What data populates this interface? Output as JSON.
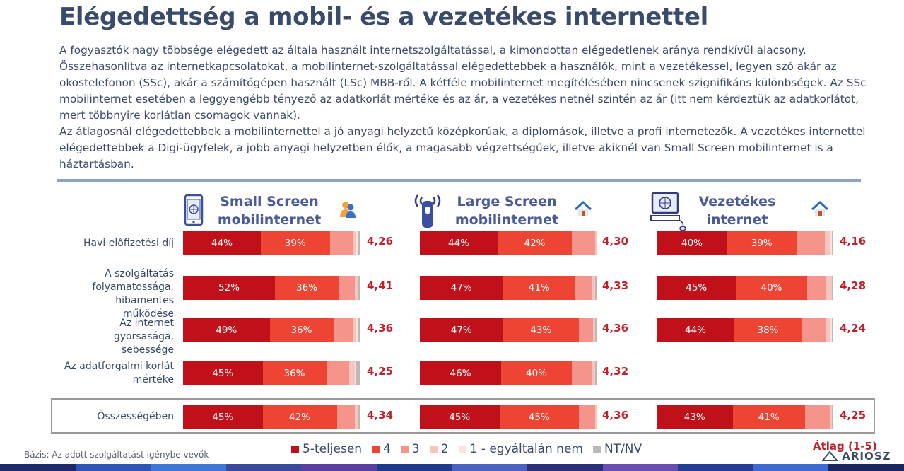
{
  "title": "Elégedettség a mobil- és a vezetékes internettel",
  "intro": [
    "A fogyasztók nagy többsége elégedett az általa használt internetszolgáltatással, a kimondottan elégedetlenek aránya rendkívül alacsony. Összehasonlítva az internetkapcsolatokat, a mobilinternet-szolgáltatással elégedettebbek a használók, mint a vezetékessel, legyen szó akár az okostelefonon (SSc), akár a számítógépen használt (LSc) MBB-ről. A kétféle mobilinternet megítélésében nincsenek szignifikáns különbségek. Az SSc mobilinternet esetében a leggyengébb tényező az adatkorlát mértéke és az ár, a vezetékes netnél szintén az ár (itt nem kérdeztük az adatkorlátot, mert többnyire korlátlan csomagok vannak).",
    "Az átlagosnál elégedettebbek a mobilinternettel a jó anyagi helyzetű középkorúak, a diplomások, illetve a profi internetezők. A vezetékes internettel elégedettebbek a Digi-ügyfelek, a jobb anyagi helyzetben élők, a magasabb végzettségűek, illetve akiknél van Small Screen mobilinternet is a háztartásban."
  ],
  "columns": [
    {
      "title_line1": "Small Screen",
      "title_line2": "mobilinternet",
      "icon": "smartphone-icon",
      "badge": "users-icon"
    },
    {
      "title_line1": "Large Screen",
      "title_line2": "mobilinternet",
      "icon": "usb-modem-icon",
      "badge": "house-icon"
    },
    {
      "title_line1": "Vezetékes",
      "title_line2": "internet",
      "icon": "desktop-computer-icon",
      "badge": "house-icon"
    }
  ],
  "row_labels": [
    "Havi előfizetési díj",
    "A szolgáltatás folyamatossága, hibamentes működése",
    "Az internet gyorsasága, sebessége",
    "Az adatforgalmi korlát mértéke",
    "Összességében"
  ],
  "colors": {
    "cat5": "#c0111a",
    "cat4": "#ee4433",
    "cat3": "#f4948a",
    "cat2": "#f8c4be",
    "cat1": "#fde3e0",
    "ntnv": "#b9b9b9",
    "accent": "#c0202a"
  },
  "chart_data": {
    "type": "bar",
    "orientation": "horizontal-stacked-100",
    "categories_order": [
      "5-teljesen",
      "4",
      "3",
      "2",
      "1 - egyáltalán nem",
      "NT/NV"
    ],
    "panels": [
      {
        "name": "Small Screen mobilinternet",
        "rows": [
          {
            "label": "Havi előfizetési díj",
            "values": [
              44,
              39,
              13,
              2,
              1,
              1
            ],
            "avg": "4,26",
            "labels": [
              "44%",
              "39%"
            ]
          },
          {
            "label": "A szolgáltatás folyamatossága, hibamentes működése",
            "values": [
              52,
              36,
              9,
              2,
              0,
              1
            ],
            "avg": "4,41",
            "labels": [
              "52%",
              "36%"
            ]
          },
          {
            "label": "Az internet gyorsasága, sebessége",
            "values": [
              49,
              36,
              11,
              2,
              1,
              1
            ],
            "avg": "4,36",
            "labels": [
              "49%",
              "36%"
            ]
          },
          {
            "label": "Az adatforgalmi korlát mértéke",
            "values": [
              45,
              36,
              13,
              3,
              1,
              2
            ],
            "avg": "4,25",
            "labels": [
              "45%",
              "36%"
            ]
          },
          {
            "label": "Összességében",
            "values": [
              45,
              42,
              10,
              2,
              0,
              1
            ],
            "avg": "4,34",
            "labels": [
              "45%",
              "42%"
            ]
          }
        ]
      },
      {
        "name": "Large Screen mobilinternet",
        "rows": [
          {
            "label": "Havi előfizetési díj",
            "values": [
              44,
              42,
              13,
              1,
              0,
              0
            ],
            "avg": "4,30",
            "labels": [
              "44%",
              "42%"
            ]
          },
          {
            "label": "A szolgáltatás folyamatossága, hibamentes működése",
            "values": [
              47,
              41,
              9,
              2,
              0,
              1
            ],
            "avg": "4,33",
            "labels": [
              "47%",
              "41%"
            ]
          },
          {
            "label": "Az internet gyorsasága, sebessége",
            "values": [
              47,
              43,
              8,
              1,
              0,
              1
            ],
            "avg": "4,36",
            "labels": [
              "47%",
              "43%"
            ]
          },
          {
            "label": "Az adatforgalmi korlát mértéke",
            "values": [
              46,
              40,
              11,
              2,
              0,
              1
            ],
            "avg": "4,32",
            "labels": [
              "46%",
              "40%"
            ]
          },
          {
            "label": "Összességében",
            "values": [
              45,
              45,
              9,
              1,
              0,
              0
            ],
            "avg": "4,36",
            "labels": [
              "45%",
              "45%"
            ]
          }
        ]
      },
      {
        "name": "Vezetékes internet",
        "rows": [
          {
            "label": "Havi előfizetési díj",
            "values": [
              40,
              39,
              16,
              3,
              1,
              1
            ],
            "avg": "4,16",
            "labels": [
              "40%",
              "39%"
            ]
          },
          {
            "label": "A szolgáltatás folyamatossága, hibamentes működése",
            "values": [
              45,
              40,
              11,
              3,
              0,
              1
            ],
            "avg": "4,28",
            "labels": [
              "45%",
              "40%"
            ]
          },
          {
            "label": "Az internet gyorsasága, sebessége",
            "values": [
              44,
              38,
              14,
              2,
              1,
              1
            ],
            "avg": "4,24",
            "labels": [
              "44%",
              "38%"
            ]
          },
          {
            "label": "Összességében",
            "values": [
              43,
              41,
              14,
              1,
              0,
              1
            ],
            "avg": "4,25",
            "labels": [
              "43%",
              "41%"
            ]
          }
        ]
      }
    ],
    "xlim": [
      0,
      100
    ],
    "unit": "%"
  },
  "legend": [
    {
      "label": "5-teljesen",
      "color_key": "cat5"
    },
    {
      "label": "4",
      "color_key": "cat4"
    },
    {
      "label": "3",
      "color_key": "cat3"
    },
    {
      "label": "2",
      "color_key": "cat2"
    },
    {
      "label": "1 - egyáltalán nem",
      "color_key": "cat1"
    },
    {
      "label": "NT/NV",
      "color_key": "ntnv"
    }
  ],
  "avg_note": "Átlag (1-5)",
  "basis": "Bázis: Az adott szolgáltatást igénybe vevők",
  "logo": "ARIOSZ"
}
